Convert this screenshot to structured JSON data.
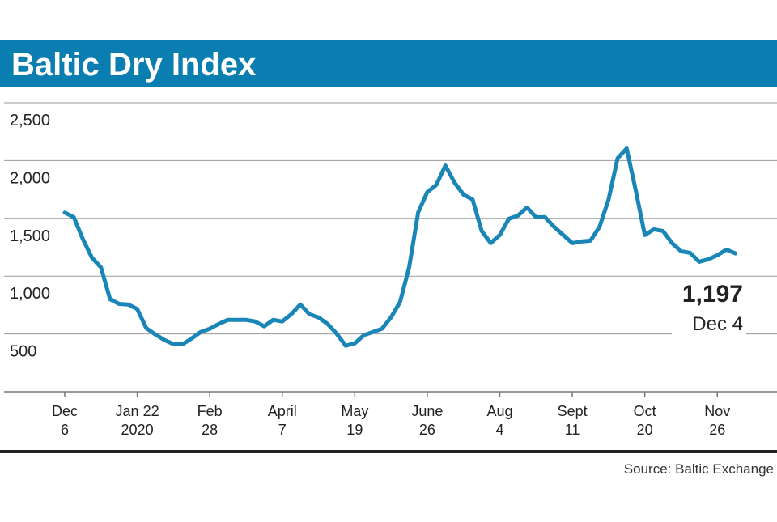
{
  "chart_data": {
    "type": "line",
    "title": "Baltic Dry Index",
    "source": "Source: Baltic Exchange",
    "color": "#1a86b8",
    "grid": true,
    "ylim": [
      0,
      2500
    ],
    "yticks": [
      {
        "value": 500,
        "label": "500"
      },
      {
        "value": 1000,
        "label": "1,000"
      },
      {
        "value": 1500,
        "label": "1,500"
      },
      {
        "value": 2000,
        "label": "2,000"
      },
      {
        "value": 2500,
        "label": "2,500"
      }
    ],
    "xlim": [
      0,
      74.3
    ],
    "xticks": [
      {
        "value": 0,
        "label": [
          "Dec",
          "6"
        ]
      },
      {
        "value": 8,
        "label": [
          "Jan 22",
          "2020"
        ]
      },
      {
        "value": 16,
        "label": [
          "Feb",
          "28"
        ]
      },
      {
        "value": 24,
        "label": [
          "April",
          "7"
        ]
      },
      {
        "value": 32,
        "label": [
          "May",
          "19"
        ]
      },
      {
        "value": 40,
        "label": [
          "June",
          "26"
        ]
      },
      {
        "value": 48,
        "label": [
          "Aug",
          "4"
        ]
      },
      {
        "value": 56,
        "label": [
          "Sept",
          "11"
        ]
      },
      {
        "value": 64,
        "label": [
          "Oct",
          "20"
        ]
      },
      {
        "value": 72,
        "label": [
          "Nov",
          "26"
        ]
      }
    ],
    "values": [
      1550,
      1510,
      1320,
      1160,
      1075,
      800,
      760,
      755,
      715,
      550,
      495,
      447,
      412,
      412,
      461,
      517,
      545,
      587,
      622,
      622,
      622,
      608,
      566,
      622,
      608,
      671,
      755,
      671,
      643,
      587,
      503,
      398,
      419,
      489,
      517,
      545,
      643,
      776,
      1076,
      1552,
      1727,
      1790,
      1957,
      1810,
      1705,
      1664,
      1391,
      1286,
      1356,
      1496,
      1524,
      1594,
      1510,
      1510,
      1426,
      1356,
      1286,
      1300,
      1307,
      1426,
      1664,
      2020,
      2104,
      1741,
      1356,
      1405,
      1391,
      1286,
      1216,
      1202,
      1125,
      1146,
      1181,
      1230,
      1197
    ],
    "end_label": {
      "value_label": "1,197",
      "date": "Dec 4"
    }
  }
}
